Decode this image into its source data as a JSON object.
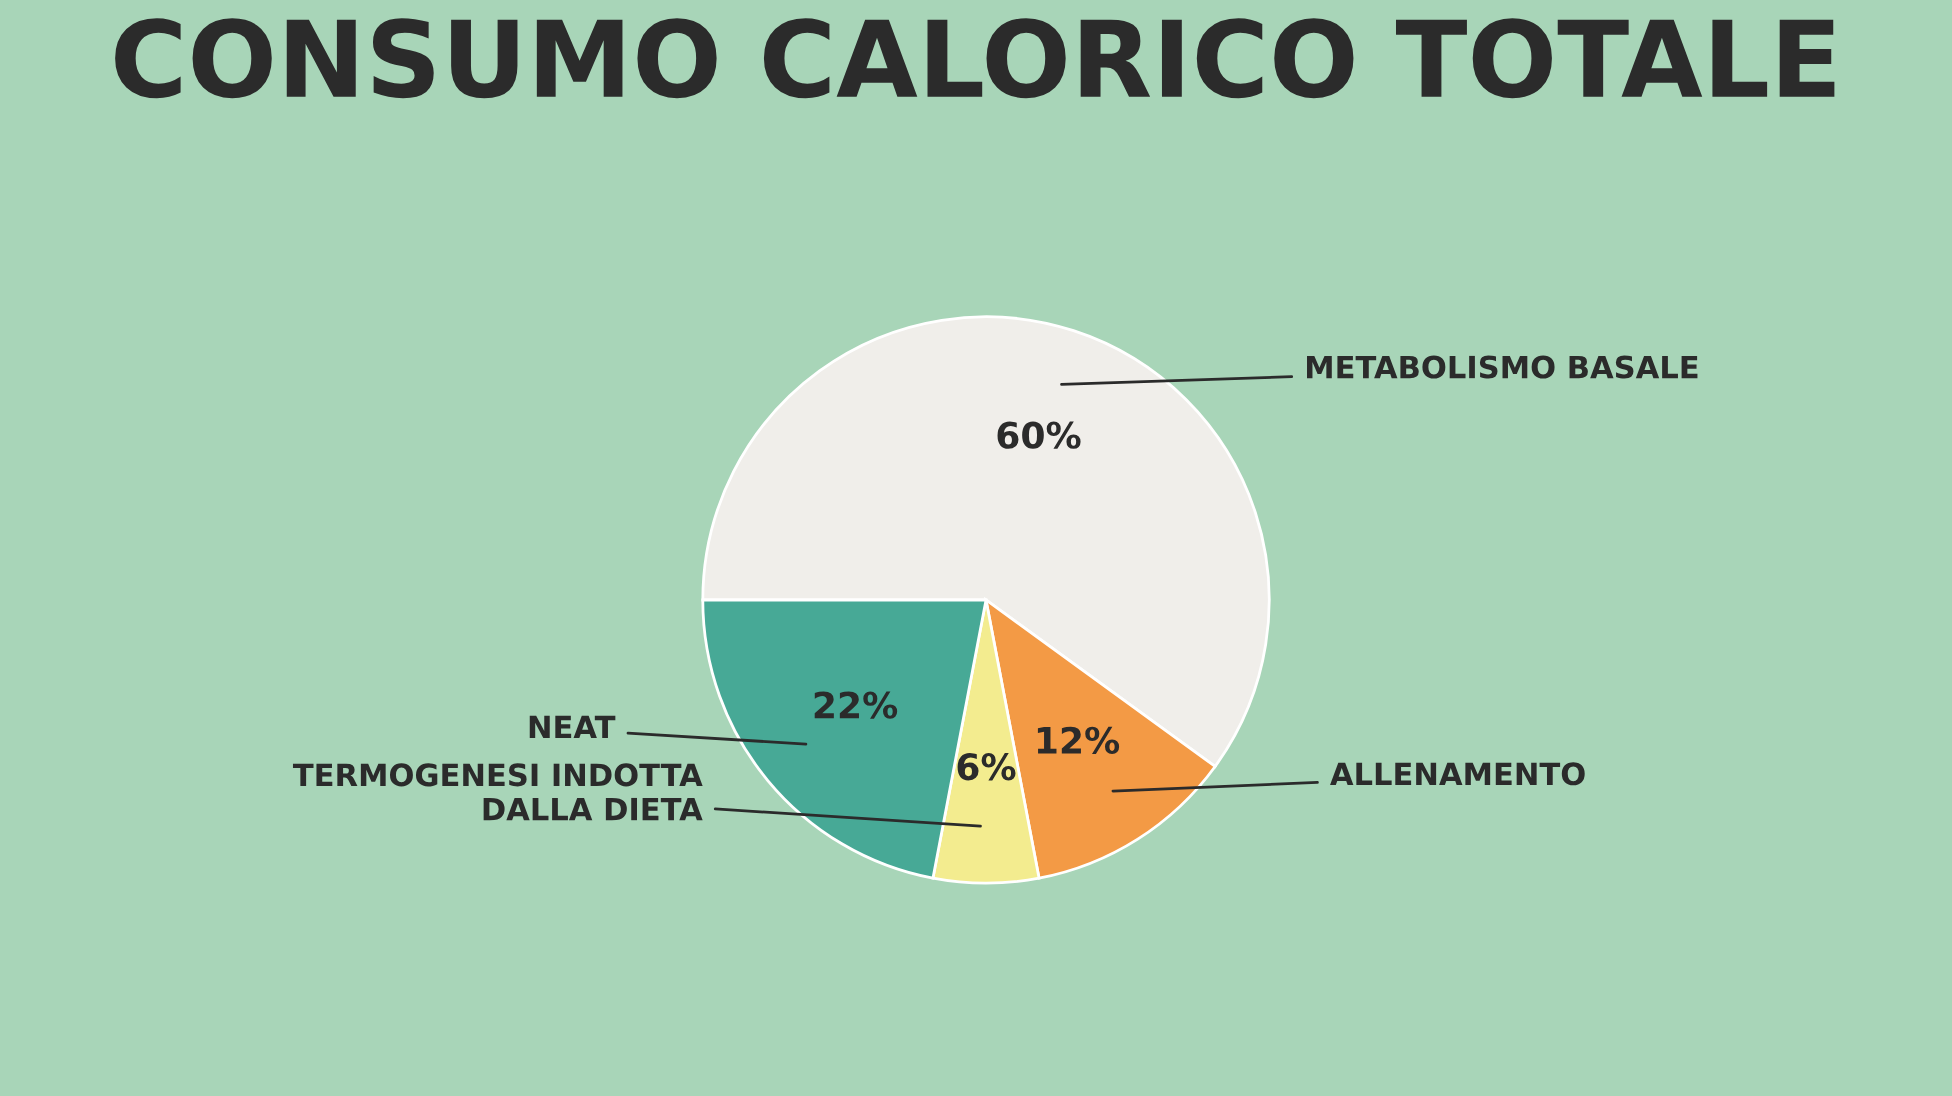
{
  "chart_data": {
    "type": "pie",
    "title": "CONSUMO CALORICO TOTALE",
    "categories": [
      "METABOLISMO BASALE",
      "ALLENAMENTO",
      "TERMOGENESI INDOTTA\nDALLA DIETA",
      "NEAT"
    ],
    "values": [
      60,
      12,
      6,
      22
    ],
    "value_labels": [
      "60%",
      "12%",
      "6%",
      "22%"
    ],
    "colors": [
      "#f0eeea",
      "#f39a45",
      "#f3ec8f",
      "#47a996"
    ],
    "legend": false
  }
}
